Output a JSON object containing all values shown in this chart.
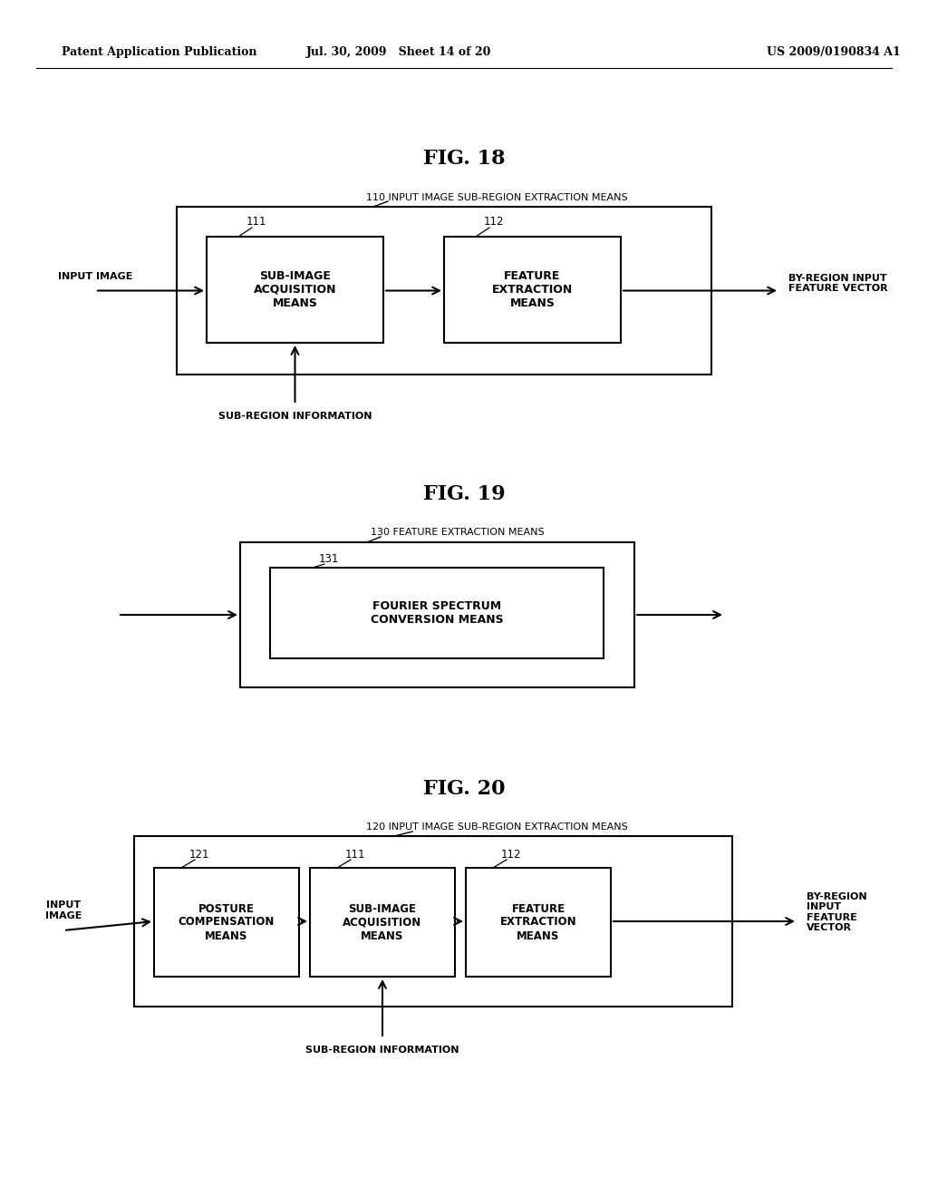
{
  "bg_color": "#ffffff",
  "header_left": "Patent Application Publication",
  "header_mid": "Jul. 30, 2009   Sheet 14 of 20",
  "header_right": "US 2009/0190834 A1",
  "fig18_title": "FIG. 18",
  "fig19_title": "FIG. 19",
  "fig20_title": "FIG. 20",
  "fig18_label": "110 INPUT IMAGE SUB-REGION EXTRACTION MEANS",
  "fig19_label": "130 FEATURE EXTRACTION MEANS",
  "fig20_label": "120 INPUT IMAGE SUB-REGION EXTRACTION MEANS",
  "box111_text": "SUB-IMAGE\nACQUISITION\nMEANS",
  "box112_text": "FEATURE\nEXTRACTION\nMEANS",
  "box131_text": "FOURIER SPECTRUM\nCONVERSION MEANS",
  "box121_text": "POSTURE\nCOMPENSATION\nMEANS",
  "input_image18": "INPUT IMAGE",
  "by_region18": "BY-REGION INPUT\nFEATURE VECTOR",
  "sub_region18": "SUB-REGION INFORMATION",
  "input_image20": "INPUT\nIMAGE",
  "by_region20": "BY-REGION\nINPUT\nFEATURE\nVECTOR",
  "sub_region20": "SUB-REGION INFORMATION",
  "label111_a": "111",
  "label112_a": "112",
  "label131": "131",
  "label121": "121",
  "label111_b": "111",
  "label112_b": "112"
}
